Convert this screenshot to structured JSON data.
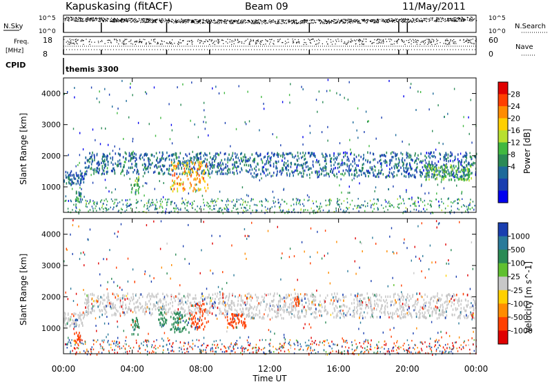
{
  "header": {
    "station": "Kapuskasing (fitACF)",
    "beam": "Beam 09",
    "date": "11/May/2011"
  },
  "noise_panel": {
    "left_label": "N.Sky",
    "left_ticks": [
      "10^5",
      "10^0"
    ],
    "right_label": "N.Search",
    "right_ticks": [
      "10^5",
      "10^0"
    ]
  },
  "freq_panel": {
    "left_label_1": "Freq.",
    "left_label_2": "[MHz]",
    "left_ticks": [
      "18",
      "8"
    ],
    "right_label": "Nave",
    "right_ticks": [
      "60",
      "0"
    ]
  },
  "cpid_panel": {
    "label": "CPID",
    "value": "themis 3300"
  },
  "power_panel": {
    "ylabel": "Slant Range [km]",
    "yticks": [
      "4000",
      "3000",
      "2000",
      "1000"
    ],
    "colorbar_label": "Power [dB]",
    "colorbar_ticks": [
      "28",
      "24",
      "20",
      "16",
      "12",
      "8",
      "4"
    ],
    "colorbar_colors": [
      "#e00000",
      "#ff4000",
      "#ff8c00",
      "#ffd000",
      "#b8e030",
      "#40b840",
      "#2a8a55",
      "#1d6a9a",
      "#1a3fb0",
      "#0000ee"
    ]
  },
  "velocity_panel": {
    "ylabel": "Slant Range [km]",
    "yticks": [
      "4000",
      "3000",
      "2000",
      "1000"
    ],
    "colorbar_label": "Velocity  [m s^-1]",
    "colorbar_ticks": [
      "1000",
      "500",
      "100",
      "25",
      "-25",
      "-100",
      "-500",
      "-1000"
    ],
    "colorbar_colors": [
      "#1a3fb0",
      "#2a7a9a",
      "#2a8a55",
      "#60c030",
      "#c8c8c8",
      "#ffd000",
      "#ff8c00",
      "#ff4000",
      "#e00000"
    ]
  },
  "xaxis": {
    "label": "Time UT",
    "ticks": [
      "00:00",
      "04:00",
      "08:00",
      "12:00",
      "16:00",
      "20:00",
      "00:00"
    ]
  },
  "chart_data": {
    "type": "heatmap",
    "title": "Kapuskasing (fitACF)  Beam 09  11/May/2011",
    "xlabel": "Time UT",
    "ylabel": "Slant Range [km]",
    "xlim": [
      0,
      24
    ],
    "ylim": [
      180,
      4500
    ],
    "panels": [
      {
        "name": "Power [dB]",
        "colorbar_range": [
          0,
          30
        ],
        "regions": [
          {
            "t_start": 0.0,
            "t_end": 1.2,
            "range_lo": 1050,
            "range_hi": 1500,
            "level": 6
          },
          {
            "t_start": 0.6,
            "t_end": 1.0,
            "range_lo": 500,
            "range_hi": 850,
            "level": 8
          },
          {
            "t_start": 1.2,
            "t_end": 10.6,
            "range_lo": 1400,
            "range_hi": 2100,
            "level": 7
          },
          {
            "t_start": 3.9,
            "t_end": 4.4,
            "range_lo": 750,
            "range_hi": 1350,
            "level": 12
          },
          {
            "t_start": 6.2,
            "t_end": 8.4,
            "range_lo": 850,
            "range_hi": 1800,
            "level": 22
          },
          {
            "t_start": 10.6,
            "t_end": 24.0,
            "range_lo": 1300,
            "range_hi": 2100,
            "level": 6
          },
          {
            "t_start": 21.0,
            "t_end": 23.7,
            "range_lo": 1200,
            "range_hi": 1700,
            "level": 12
          }
        ]
      },
      {
        "name": "Velocity [m s-1]",
        "colorbar_range": [
          -1000,
          1000
        ],
        "regions": [
          {
            "t_start": 0.0,
            "t_end": 1.2,
            "range_lo": 1050,
            "range_hi": 1500,
            "level": 0
          },
          {
            "t_start": 0.6,
            "t_end": 1.0,
            "range_lo": 500,
            "range_hi": 850,
            "level": -300
          },
          {
            "t_start": 1.2,
            "t_end": 10.6,
            "range_lo": 1400,
            "range_hi": 2100,
            "level": 0
          },
          {
            "t_start": 3.9,
            "t_end": 4.4,
            "range_lo": 750,
            "range_hi": 1350,
            "level": 150
          },
          {
            "t_start": 5.5,
            "t_end": 6.0,
            "range_lo": 1050,
            "range_hi": 1500,
            "level": 300
          },
          {
            "t_start": 6.2,
            "t_end": 7.4,
            "range_lo": 850,
            "range_hi": 1500,
            "level": 120
          },
          {
            "t_start": 7.4,
            "t_end": 8.4,
            "range_lo": 950,
            "range_hi": 1800,
            "level": -300
          },
          {
            "t_start": 9.5,
            "t_end": 10.6,
            "range_lo": 1000,
            "range_hi": 1450,
            "level": -300
          },
          {
            "t_start": 10.6,
            "t_end": 24.0,
            "range_lo": 1300,
            "range_hi": 2100,
            "level": 0
          },
          {
            "t_start": 13.4,
            "t_end": 13.7,
            "range_lo": 1700,
            "range_hi": 2000,
            "level": -300
          }
        ]
      }
    ],
    "grid": false
  }
}
